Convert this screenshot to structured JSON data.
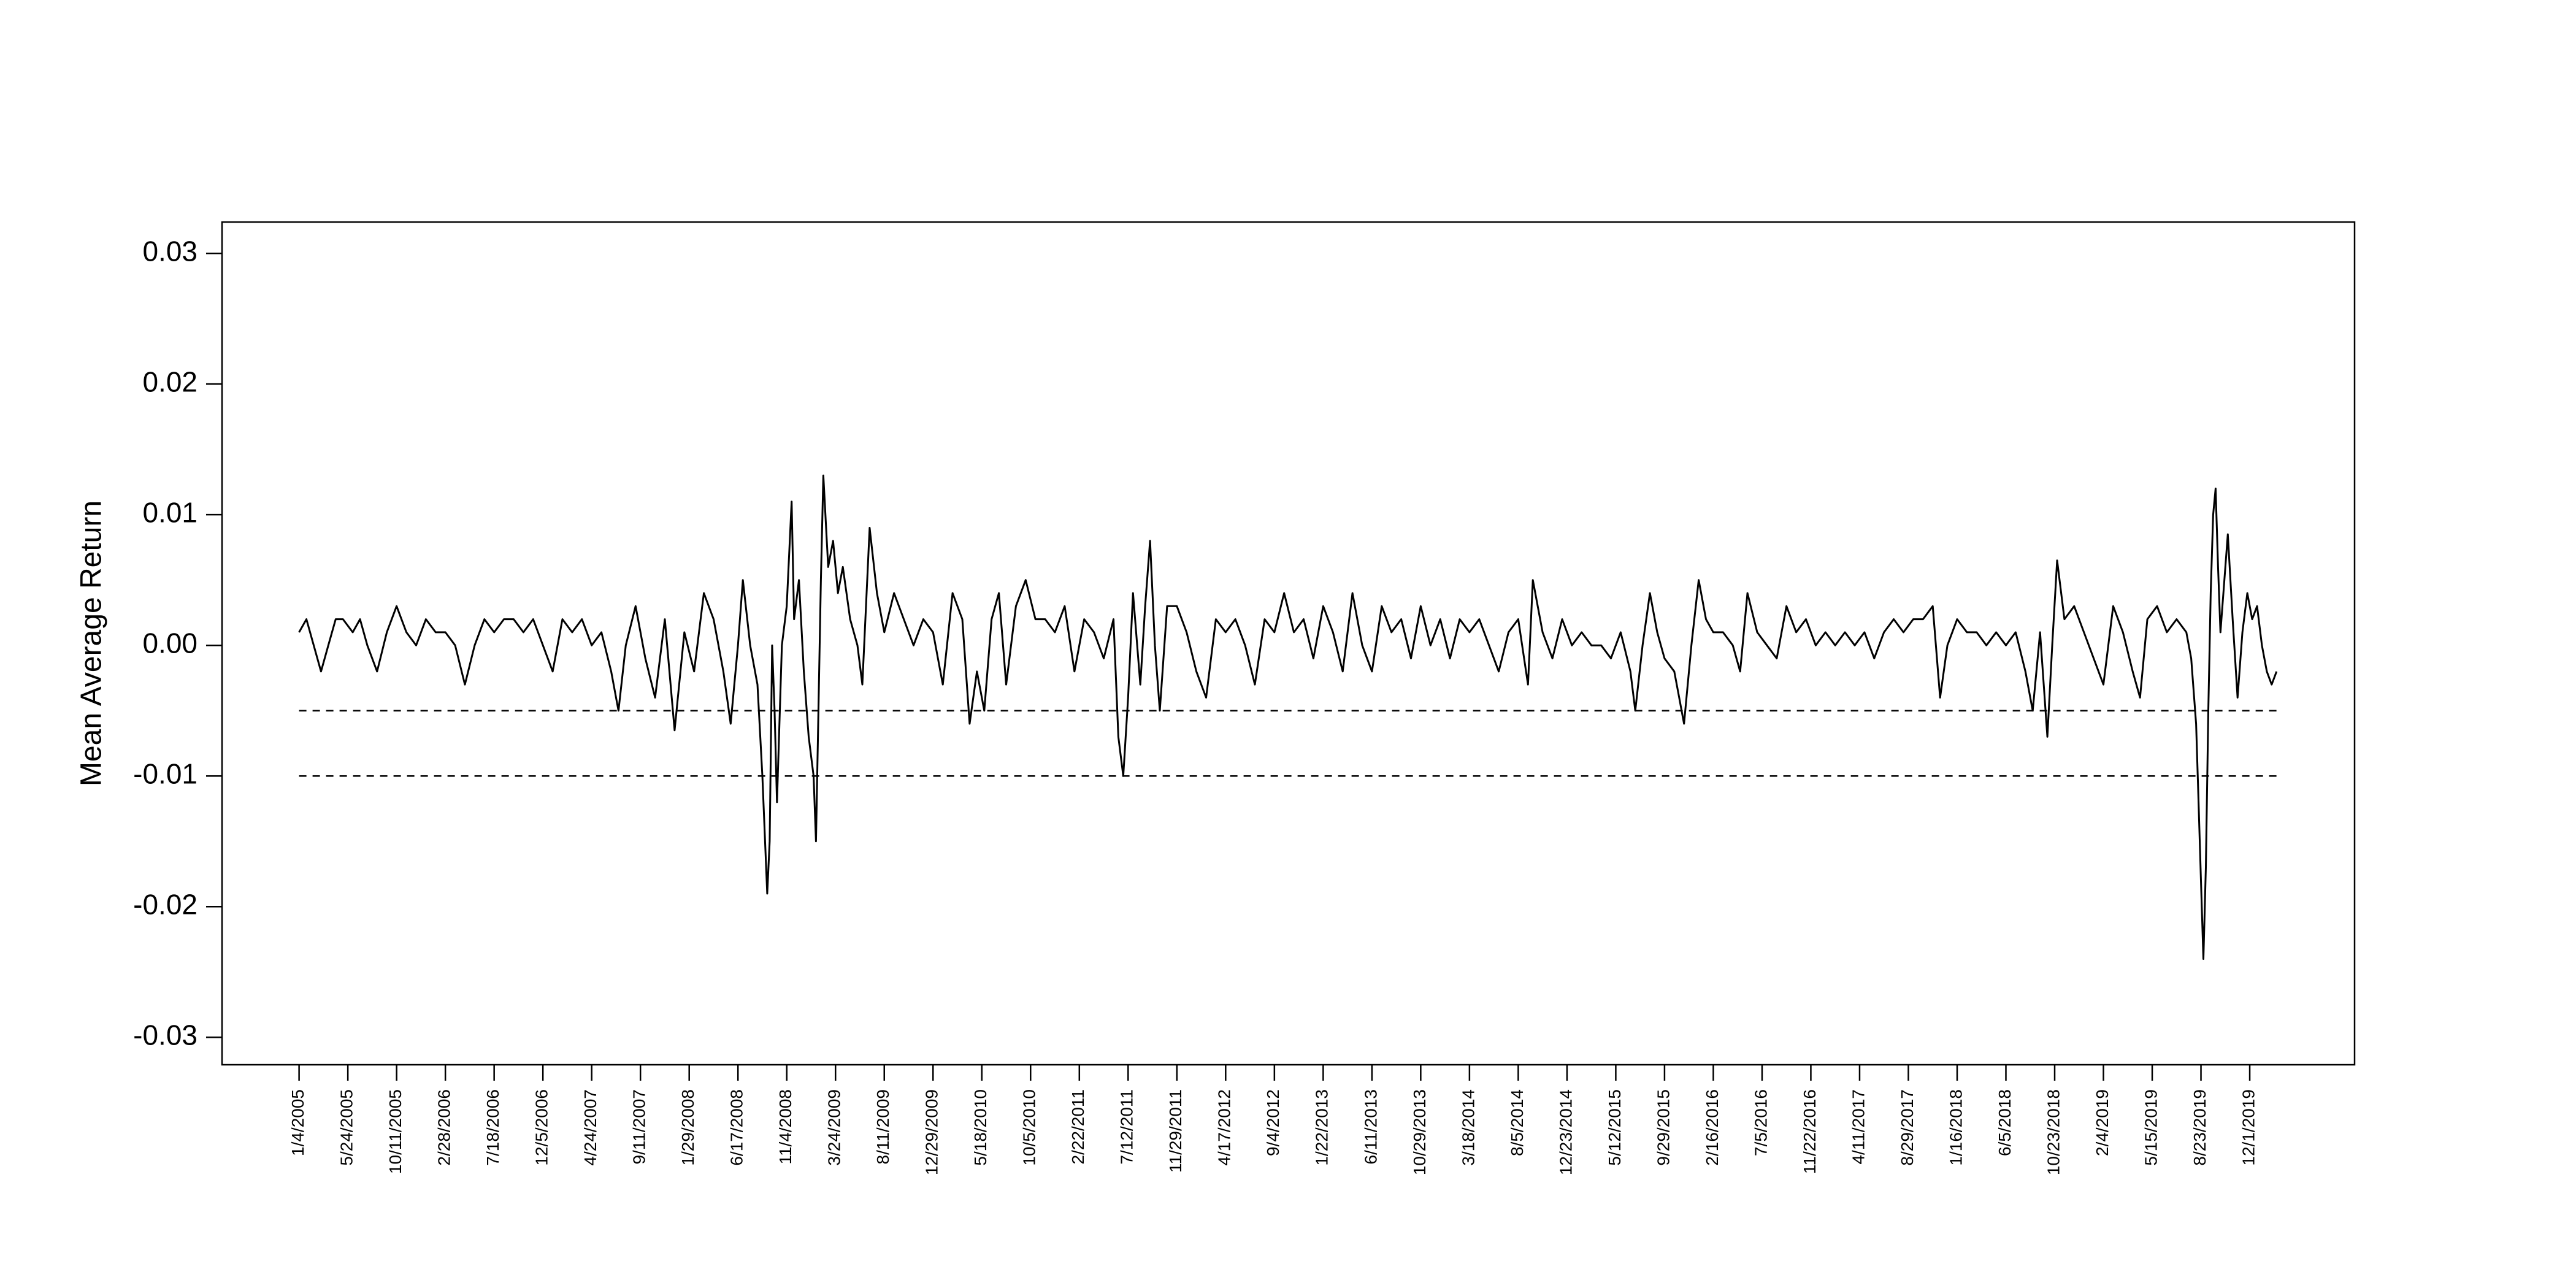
{
  "chart_data": {
    "type": "line",
    "y_label": "Mean Average Return",
    "xlim": [
      -31.6,
      843
    ],
    "ylim": [
      -0.0321,
      0.0324
    ],
    "xticks": [
      {
        "value": 0,
        "label": "1/4/2005"
      },
      {
        "value": 20,
        "label": "5/24/2005"
      },
      {
        "value": 40,
        "label": "10/11/2005"
      },
      {
        "value": 60,
        "label": "2/28/2006"
      },
      {
        "value": 80,
        "label": "7/18/2006"
      },
      {
        "value": 100,
        "label": "12/5/2006"
      },
      {
        "value": 120,
        "label": "4/24/2007"
      },
      {
        "value": 140,
        "label": "9/11/2007"
      },
      {
        "value": 160,
        "label": "1/29/2008"
      },
      {
        "value": 180,
        "label": "6/17/2008"
      },
      {
        "value": 200,
        "label": "11/4/2008"
      },
      {
        "value": 220,
        "label": "3/24/2009"
      },
      {
        "value": 240,
        "label": "8/11/2009"
      },
      {
        "value": 260,
        "label": "12/29/2009"
      },
      {
        "value": 280,
        "label": "5/18/2010"
      },
      {
        "value": 300,
        "label": "10/5/2010"
      },
      {
        "value": 320,
        "label": "2/22/2011"
      },
      {
        "value": 340,
        "label": "7/12/2011"
      },
      {
        "value": 360,
        "label": "11/29/2011"
      },
      {
        "value": 380,
        "label": "4/17/2012"
      },
      {
        "value": 400,
        "label": "9/4/2012"
      },
      {
        "value": 420,
        "label": "1/22/2013"
      },
      {
        "value": 440,
        "label": "6/11/2013"
      },
      {
        "value": 460,
        "label": "10/29/2013"
      },
      {
        "value": 480,
        "label": "3/18/2014"
      },
      {
        "value": 500,
        "label": "8/5/2014"
      },
      {
        "value": 520,
        "label": "12/23/2014"
      },
      {
        "value": 540,
        "label": "5/12/2015"
      },
      {
        "value": 560,
        "label": "9/29/2015"
      },
      {
        "value": 580,
        "label": "2/16/2016"
      },
      {
        "value": 600,
        "label": "7/5/2016"
      },
      {
        "value": 620,
        "label": "11/22/2016"
      },
      {
        "value": 640,
        "label": "4/11/2017"
      },
      {
        "value": 660,
        "label": "8/29/2017"
      },
      {
        "value": 680,
        "label": "1/16/2018"
      },
      {
        "value": 700,
        "label": "6/5/2018"
      },
      {
        "value": 720,
        "label": "10/23/2018"
      },
      {
        "value": 740,
        "label": "2/4/2019"
      },
      {
        "value": 760,
        "label": "5/15/2019"
      },
      {
        "value": 780,
        "label": "8/23/2019"
      },
      {
        "value": 800,
        "label": "12/1/2019"
      }
    ],
    "yticks": [
      0.03,
      0.02,
      0.01,
      {
        "value": 0,
        "label": "0.00"
      },
      -0.01,
      -0.02,
      -0.03
    ],
    "reference_lines": [
      -0.005,
      -0.01
    ],
    "reference_style": "dashed",
    "x": [
      0,
      3,
      6,
      9,
      12,
      15,
      18,
      22,
      25,
      28,
      32,
      36,
      40,
      44,
      48,
      52,
      56,
      60,
      64,
      68,
      72,
      76,
      80,
      84,
      88,
      92,
      96,
      100,
      104,
      108,
      112,
      116,
      120,
      124,
      128,
      131,
      134,
      138,
      142,
      146,
      150,
      154,
      158,
      162,
      166,
      170,
      174,
      177,
      180,
      182,
      185,
      188,
      190,
      192,
      193,
      194,
      195,
      196,
      198,
      200,
      202,
      203,
      205,
      207,
      209,
      211,
      212,
      213,
      214,
      215,
      217,
      219,
      221,
      223,
      226,
      229,
      231,
      234,
      237,
      240,
      244,
      248,
      252,
      256,
      260,
      264,
      268,
      272,
      275,
      278,
      281,
      284,
      287,
      290,
      294,
      298,
      302,
      306,
      310,
      314,
      318,
      322,
      326,
      330,
      334,
      336,
      338,
      340,
      342,
      345,
      347,
      349,
      351,
      353,
      356,
      360,
      364,
      368,
      372,
      376,
      380,
      384,
      388,
      392,
      396,
      400,
      404,
      408,
      412,
      416,
      420,
      424,
      428,
      432,
      436,
      440,
      444,
      448,
      452,
      456,
      460,
      464,
      468,
      472,
      476,
      480,
      484,
      488,
      492,
      496,
      500,
      504,
      506,
      510,
      514,
      518,
      522,
      526,
      530,
      534,
      538,
      542,
      546,
      548,
      551,
      554,
      557,
      560,
      564,
      566,
      568,
      571,
      574,
      577,
      580,
      584,
      588,
      591,
      594,
      598,
      602,
      606,
      610,
      614,
      618,
      622,
      626,
      630,
      634,
      638,
      642,
      646,
      650,
      654,
      658,
      662,
      666,
      670,
      673,
      676,
      680,
      684,
      688,
      692,
      696,
      700,
      704,
      708,
      711,
      714,
      717,
      719,
      721,
      724,
      728,
      732,
      736,
      740,
      744,
      748,
      752,
      755,
      758,
      762,
      766,
      770,
      774,
      776,
      778,
      779,
      780,
      781,
      782,
      783,
      784,
      785,
      786,
      787,
      788,
      790,
      791,
      793,
      795,
      797,
      799,
      801,
      803,
      805,
      807,
      809,
      811
    ],
    "series": [
      {
        "name": "Mean Average Return",
        "color": "#000000",
        "values": [
          0.001,
          0.002,
          0.0,
          -0.002,
          0.0,
          0.002,
          0.002,
          0.001,
          0.002,
          0.0,
          -0.002,
          0.001,
          0.003,
          0.001,
          0.0,
          0.002,
          0.001,
          0.001,
          0.0,
          -0.003,
          0.0,
          0.002,
          0.001,
          0.002,
          0.002,
          0.001,
          0.002,
          0.0,
          -0.002,
          0.002,
          0.001,
          0.002,
          0.0,
          0.001,
          -0.002,
          -0.005,
          0.0,
          0.003,
          -0.001,
          -0.004,
          0.002,
          -0.0065,
          0.001,
          -0.002,
          0.004,
          0.002,
          -0.002,
          -0.006,
          0.0,
          0.005,
          0.0,
          -0.003,
          -0.01,
          -0.019,
          -0.015,
          0.0,
          -0.005,
          -0.012,
          0.0,
          0.003,
          0.011,
          0.002,
          0.005,
          -0.002,
          -0.007,
          -0.01,
          -0.015,
          -0.005,
          0.005,
          0.013,
          0.006,
          0.008,
          0.004,
          0.006,
          0.002,
          0.0,
          -0.003,
          0.009,
          0.004,
          0.001,
          0.004,
          0.002,
          0.0,
          0.002,
          0.001,
          -0.003,
          0.004,
          0.002,
          -0.006,
          -0.002,
          -0.005,
          0.002,
          0.004,
          -0.003,
          0.003,
          0.005,
          0.002,
          0.002,
          0.001,
          0.003,
          -0.002,
          0.002,
          0.001,
          -0.001,
          0.002,
          -0.007,
          -0.01,
          -0.004,
          0.004,
          -0.003,
          0.003,
          0.008,
          0.0,
          -0.005,
          0.003,
          0.003,
          0.001,
          -0.002,
          -0.004,
          0.002,
          0.001,
          0.002,
          0.0,
          -0.003,
          0.002,
          0.001,
          0.004,
          0.001,
          0.002,
          -0.001,
          0.003,
          0.001,
          -0.002,
          0.004,
          0.0,
          -0.002,
          0.003,
          0.001,
          0.002,
          -0.001,
          0.003,
          0.0,
          0.002,
          -0.001,
          0.002,
          0.001,
          0.002,
          0.0,
          -0.002,
          0.001,
          0.002,
          -0.003,
          0.005,
          0.001,
          -0.001,
          0.002,
          0.0,
          0.001,
          0.0,
          0.0,
          -0.001,
          0.001,
          -0.002,
          -0.005,
          0.0,
          0.004,
          0.001,
          -0.001,
          -0.002,
          -0.004,
          -0.006,
          0.0,
          0.005,
          0.002,
          0.001,
          0.001,
          0.0,
          -0.002,
          0.004,
          0.001,
          0.0,
          -0.001,
          0.003,
          0.001,
          0.002,
          0.0,
          0.001,
          0.0,
          0.001,
          0.0,
          0.001,
          -0.001,
          0.001,
          0.002,
          0.001,
          0.002,
          0.002,
          0.003,
          -0.004,
          0.0,
          0.002,
          0.001,
          0.001,
          0.0,
          0.001,
          0.0,
          0.001,
          -0.002,
          -0.005,
          0.001,
          -0.007,
          0.0,
          0.0065,
          0.002,
          0.003,
          0.001,
          -0.001,
          -0.003,
          0.003,
          0.001,
          -0.002,
          -0.004,
          0.002,
          0.003,
          0.001,
          0.002,
          0.001,
          -0.001,
          -0.006,
          -0.012,
          -0.018,
          -0.024,
          -0.017,
          -0.005,
          0.004,
          0.01,
          0.012,
          0.006,
          0.001,
          0.006,
          0.0085,
          0.002,
          -0.004,
          0.001,
          0.004,
          0.002,
          0.003,
          0.0,
          -0.002,
          -0.003,
          -0.002
        ]
      }
    ]
  }
}
